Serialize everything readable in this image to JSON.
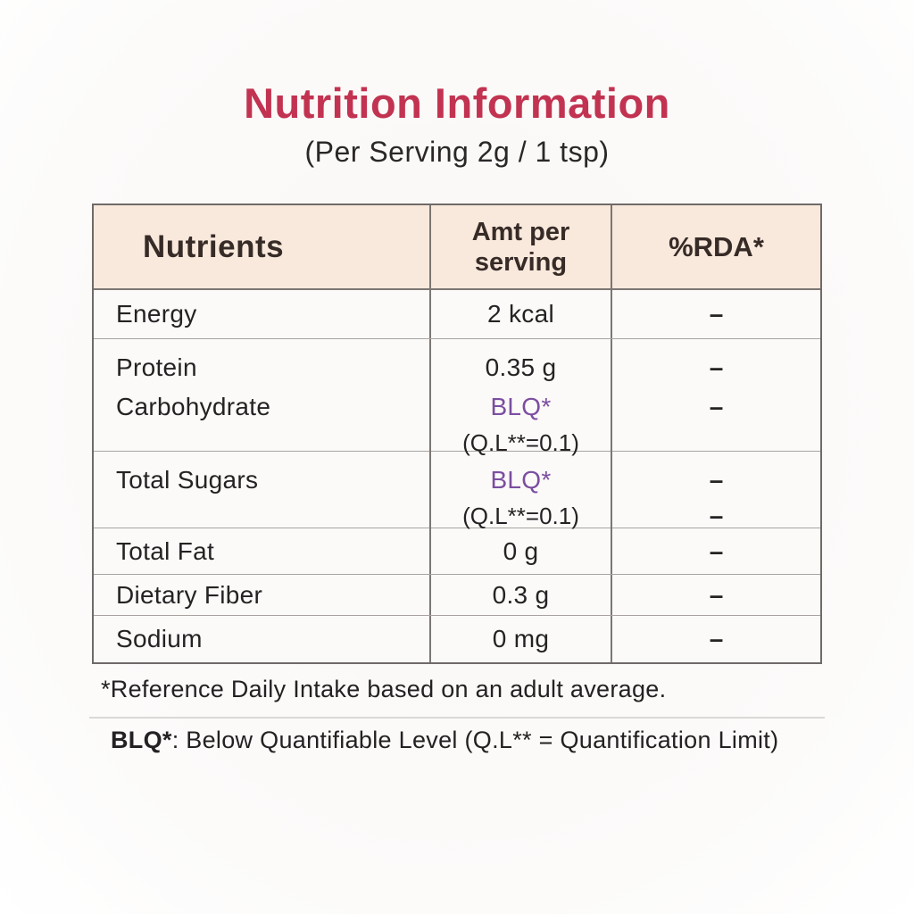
{
  "title": "Nutrition Information",
  "subtitle": "(Per Serving 2g / 1 tsp)",
  "colors": {
    "title_accent": "#c23351",
    "header_background": "#f8e9dc",
    "header_text": "#372b27",
    "blq_purple": "#7c4ea0",
    "table_border": "#6f6a67",
    "page_background": "#fcfaf9"
  },
  "table": {
    "headers": {
      "nutrients": "Nutrients",
      "amt_line1": "Amt per",
      "amt_line2": "serving",
      "rda": "%RDA*"
    },
    "rows": {
      "energy": {
        "name": "Energy",
        "amt": "2 kcal",
        "rda": "–"
      },
      "protein": {
        "name": "Protein",
        "amt": "0.35 g",
        "rda": "–"
      },
      "carbohydrate": {
        "name": "Carbohydrate",
        "amt": "BLQ*",
        "amt_note": "(Q.L**=0.1)",
        "rda": "–"
      },
      "total_sugars": {
        "name": "Total Sugars",
        "amt": "BLQ*",
        "amt_note": "(Q.L**=0.1)",
        "rda": "–",
        "rda2": "–"
      },
      "total_fat": {
        "name": "Total Fat",
        "amt": "0 g",
        "rda": "–"
      },
      "dietary_fiber": {
        "name": "Dietary Fiber",
        "amt": "0.3 g",
        "rda": "–"
      },
      "sodium": {
        "name": "Sodium",
        "amt": "0 mg",
        "rda": "–"
      }
    }
  },
  "footnotes": {
    "rda_note": "*Reference Daily Intake based on an adult average.",
    "blq_term": "BLQ*",
    "blq_rest": ": Below Quantifiable Level (Q.L** = Quantification Limit)"
  }
}
